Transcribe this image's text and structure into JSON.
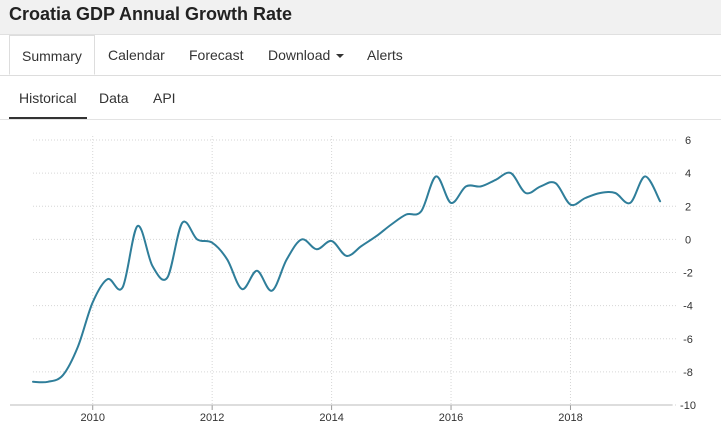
{
  "header": {
    "title": "Croatia GDP Annual Growth Rate"
  },
  "main_tabs": [
    {
      "label": "Summary",
      "active": true
    },
    {
      "label": "Calendar",
      "active": false
    },
    {
      "label": "Forecast",
      "active": false
    },
    {
      "label": "Download",
      "active": false,
      "dropdown": true
    },
    {
      "label": "Alerts",
      "active": false
    }
  ],
  "sub_tabs": [
    {
      "label": "Historical",
      "active": true
    },
    {
      "label": "Data",
      "active": false
    },
    {
      "label": "API",
      "active": false
    }
  ],
  "chart_data": {
    "type": "line",
    "title": "",
    "xlabel": "",
    "ylabel": "",
    "xlim": [
      2009.0,
      2019.7
    ],
    "ylim": [
      -10,
      6
    ],
    "x_ticks": [
      "2010",
      "2012",
      "2014",
      "2016",
      "2018"
    ],
    "y_ticks": [
      "6",
      "4",
      "2",
      "0",
      "-2",
      "-4",
      "-6",
      "-8",
      "-10"
    ],
    "y_axis_side": "right",
    "grid": true,
    "line_color": "#2f7e9a",
    "series": [
      {
        "name": "",
        "x": [
          2009.0,
          2009.25,
          2009.5,
          2009.75,
          2010.0,
          2010.25,
          2010.5,
          2010.75,
          2011.0,
          2011.25,
          2011.5,
          2011.75,
          2012.0,
          2012.25,
          2012.5,
          2012.75,
          2013.0,
          2013.25,
          2013.5,
          2013.75,
          2014.0,
          2014.25,
          2014.5,
          2014.75,
          2015.0,
          2015.25,
          2015.5,
          2015.75,
          2016.0,
          2016.25,
          2016.5,
          2016.75,
          2017.0,
          2017.25,
          2017.5,
          2017.75,
          2018.0,
          2018.25,
          2018.5,
          2018.75,
          2019.0,
          2019.25,
          2019.5
        ],
        "y": [
          -8.6,
          -8.6,
          -8.2,
          -6.5,
          -3.8,
          -2.4,
          -2.9,
          0.8,
          -1.6,
          -2.3,
          1.0,
          0.0,
          -0.2,
          -1.2,
          -3.0,
          -1.9,
          -3.1,
          -1.2,
          0.0,
          -0.6,
          -0.1,
          -1.0,
          -0.4,
          0.2,
          0.9,
          1.5,
          1.7,
          3.8,
          2.2,
          3.2,
          3.2,
          3.6,
          4.0,
          2.8,
          3.2,
          3.4,
          2.1,
          2.5,
          2.8,
          2.8,
          2.2,
          3.8,
          2.3
        ]
      }
    ]
  }
}
